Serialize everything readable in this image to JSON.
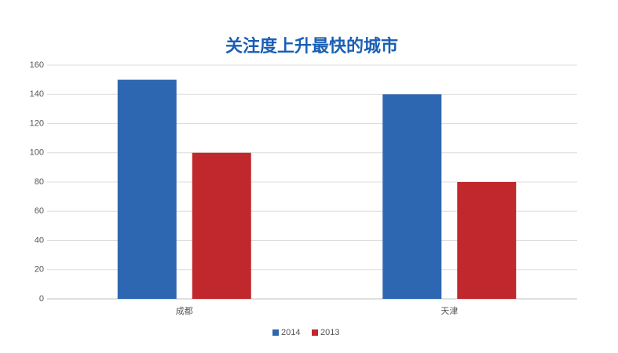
{
  "chart_data": {
    "type": "bar",
    "title": "关注度上升最快的城市",
    "categories": [
      "成都",
      "天津"
    ],
    "series": [
      {
        "name": "2014",
        "color": "#2e67b1",
        "values": [
          150,
          140
        ]
      },
      {
        "name": "2013",
        "color": "#c0282d",
        "values": [
          100,
          80
        ]
      }
    ],
    "ylim": [
      0,
      160
    ],
    "yticks": [
      0,
      20,
      40,
      60,
      80,
      100,
      120,
      140,
      160
    ],
    "grid": true,
    "legend": "bottom"
  }
}
